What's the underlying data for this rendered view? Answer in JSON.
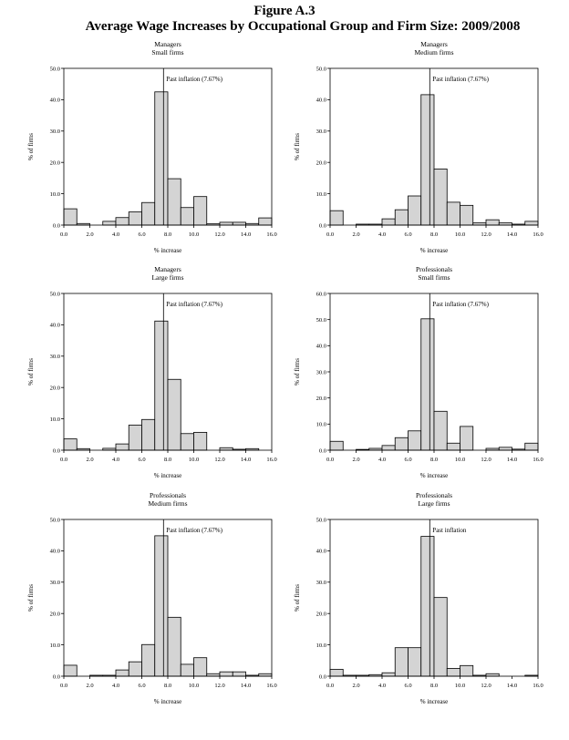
{
  "figure": {
    "title": "Figure A.3",
    "subtitle": "Average Wage Increases by Occupational Group and Firm Size: 2009/2008"
  },
  "chart_data": [
    {
      "type": "bar",
      "title": "Managers",
      "subtitle": "Small firms",
      "xlabel": "% increase",
      "ylabel": "% of firms",
      "xlim": [
        0,
        16
      ],
      "ylim": [
        0,
        50
      ],
      "yticks": [
        "0.0",
        "10.0",
        "20.0",
        "30.0",
        "40.0",
        "50.0"
      ],
      "xticks": [
        "0.0",
        "2.0",
        "4.0",
        "6.0",
        "8.0",
        "10.0",
        "12.0",
        "14.0",
        "16.0"
      ],
      "bin_width": 1,
      "bins": [
        0,
        1,
        2,
        3,
        4,
        5,
        6,
        7,
        8,
        9,
        10,
        11,
        12,
        13,
        14,
        15
      ],
      "values": [
        5.2,
        0.5,
        0,
        1.2,
        2.4,
        4.2,
        7.2,
        42.5,
        14.8,
        5.6,
        9.1,
        0.4,
        0.9,
        0.9,
        0.5,
        2.3
      ],
      "reference_line": {
        "x": 7.67,
        "label": "Past inflation (7.67%)"
      }
    },
    {
      "type": "bar",
      "title": "Managers",
      "subtitle": "Medium firms",
      "xlabel": "% increase",
      "ylabel": "% of firms",
      "xlim": [
        0,
        16
      ],
      "ylim": [
        0,
        50
      ],
      "yticks": [
        "0.0",
        "10.0",
        "20.0",
        "30.0",
        "40.0",
        "50.0"
      ],
      "xticks": [
        "0.0",
        "2.0",
        "4.0",
        "6.0",
        "8.0",
        "10.0",
        "12.0",
        "14.0",
        "16.0"
      ],
      "bin_width": 1,
      "bins": [
        0,
        1,
        2,
        3,
        4,
        5,
        6,
        7,
        8,
        9,
        10,
        11,
        12,
        13,
        14,
        15
      ],
      "values": [
        4.6,
        0,
        0.3,
        0.3,
        2.0,
        4.9,
        9.3,
        41.6,
        17.9,
        7.3,
        6.3,
        0.7,
        1.7,
        0.7,
        0.3,
        1.2
      ],
      "reference_line": {
        "x": 7.67,
        "label": "Past inflation (7.67%)"
      }
    },
    {
      "type": "bar",
      "title": "Managers",
      "subtitle": "Large firms",
      "xlabel": "% increase",
      "ylabel": "% of firms",
      "xlim": [
        0,
        16
      ],
      "ylim": [
        0,
        50
      ],
      "yticks": [
        "0.0",
        "10.0",
        "20.0",
        "30.0",
        "40.0",
        "50.0"
      ],
      "xticks": [
        "0.0",
        "2.0",
        "4.0",
        "6.0",
        "8.0",
        "10.0",
        "12.0",
        "14.0",
        "16.0"
      ],
      "bin_width": 1,
      "bins": [
        0,
        1,
        2,
        3,
        4,
        5,
        6,
        7,
        8,
        9,
        10,
        11,
        12,
        13,
        14,
        15
      ],
      "values": [
        3.6,
        0.5,
        0,
        0.6,
        2.0,
        8.0,
        9.8,
        41.2,
        22.6,
        5.3,
        5.7,
        0,
        0.8,
        0.3,
        0.5,
        0
      ],
      "reference_line": {
        "x": 7.67,
        "label": "Past inflation (7.67%)"
      }
    },
    {
      "type": "bar",
      "title": "Professionals",
      "subtitle": "Small firms",
      "xlabel": "% increase",
      "ylabel": "% of firms",
      "xlim": [
        0,
        16
      ],
      "ylim": [
        0,
        60
      ],
      "yticks": [
        "0.0",
        "10.0",
        "20.0",
        "30.0",
        "40.0",
        "50.0",
        "60.0"
      ],
      "xticks": [
        "0.0",
        "2.0",
        "4.0",
        "6.0",
        "8.0",
        "10.0",
        "12.0",
        "14.0",
        "16.0"
      ],
      "bin_width": 1,
      "bins": [
        0,
        1,
        2,
        3,
        4,
        5,
        6,
        7,
        8,
        9,
        10,
        11,
        12,
        13,
        14,
        15
      ],
      "values": [
        3.4,
        0,
        0.3,
        0.7,
        1.8,
        4.8,
        7.4,
        50.3,
        14.9,
        2.7,
        9.1,
        0,
        0.7,
        1.1,
        0.4,
        2.7
      ],
      "reference_line": {
        "x": 7.67,
        "label": "Past inflation (7.67%)"
      }
    },
    {
      "type": "bar",
      "title": "Professionals",
      "subtitle": "Medium firms",
      "xlabel": "% increase",
      "ylabel": "% of firms",
      "xlim": [
        0,
        16
      ],
      "ylim": [
        0,
        50
      ],
      "yticks": [
        "0.0",
        "10.0",
        "20.0",
        "30.0",
        "40.0",
        "50.0"
      ],
      "xticks": [
        "0.0",
        "2.0",
        "4.0",
        "6.0",
        "8.0",
        "10.0",
        "12.0",
        "14.0",
        "16.0"
      ],
      "bin_width": 1,
      "bins": [
        0,
        1,
        2,
        3,
        4,
        5,
        6,
        7,
        8,
        9,
        10,
        11,
        12,
        13,
        14,
        15
      ],
      "values": [
        3.5,
        0,
        0.3,
        0.3,
        2.0,
        4.6,
        10.1,
        44.8,
        18.8,
        3.8,
        5.9,
        0.8,
        1.4,
        1.4,
        0.3,
        0.8
      ],
      "reference_line": {
        "x": 7.67,
        "label": "Past inflation (7.67%)"
      }
    },
    {
      "type": "bar",
      "title": "Professionals",
      "subtitle": "Large firms",
      "xlabel": "% increase",
      "ylabel": "% of firms",
      "xlim": [
        0,
        16
      ],
      "ylim": [
        0,
        50
      ],
      "yticks": [
        "0.0",
        "10.0",
        "20.0",
        "30.0",
        "40.0",
        "50.0"
      ],
      "xticks": [
        "0.0",
        "2.0",
        "4.0",
        "6.0",
        "8.0",
        "10.0",
        "12.0",
        "14.0",
        "16.0"
      ],
      "bin_width": 1,
      "bins": [
        0,
        1,
        2,
        3,
        4,
        5,
        6,
        7,
        8,
        9,
        10,
        11,
        12,
        13,
        14,
        15
      ],
      "values": [
        2.2,
        0.3,
        0.3,
        0.5,
        1.1,
        9.1,
        9.1,
        44.6,
        25.1,
        2.5,
        3.4,
        0.3,
        0.8,
        0,
        0,
        0.3
      ],
      "reference_line": {
        "x": 7.67,
        "label": "Past inflation"
      }
    }
  ]
}
